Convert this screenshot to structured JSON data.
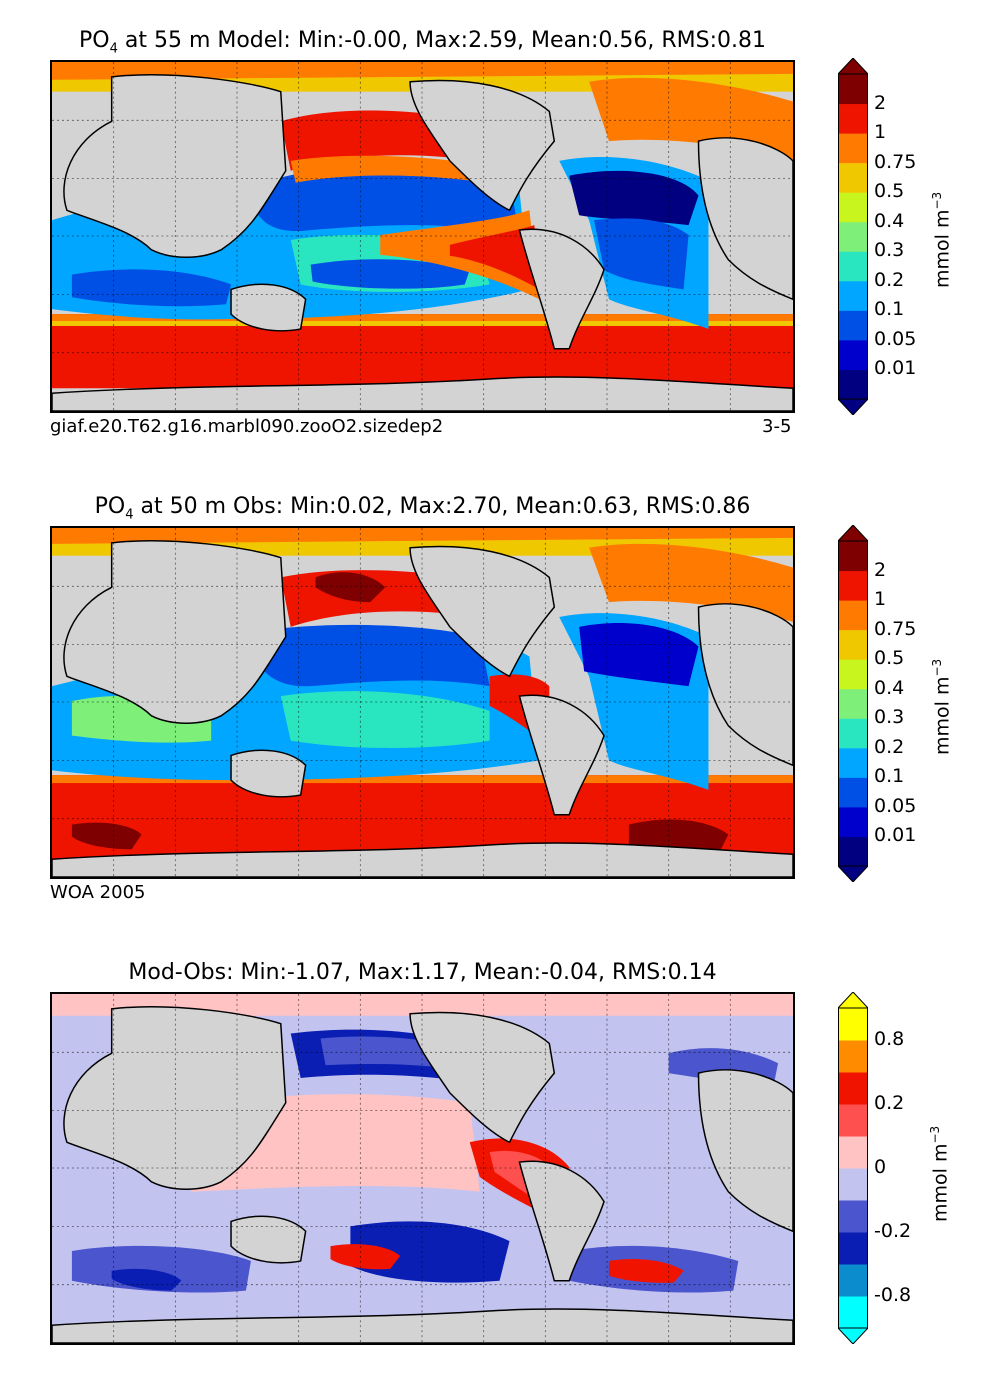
{
  "panels": [
    {
      "title_prefix": "PO",
      "title_sub": "4",
      "title_rest": " at 55 m Model: Min:-0.00, Max:2.59, Mean:0.56, RMS:0.81",
      "caption_left": "giaf.e20.T62.g16.marbl090.zooO2.sizedep2",
      "caption_right": "3-5",
      "units_base": "mmol m",
      "units_sup": "−3",
      "colorbar": {
        "ticks": [
          "2",
          "1",
          "0.75",
          "0.5",
          "0.4",
          "0.3",
          "0.2",
          "0.1",
          "0.05",
          "0.01"
        ],
        "colors": [
          "#000080",
          "#0000cd",
          "#0050e6",
          "#00a6ff",
          "#2ae6c0",
          "#7ef07a",
          "#c8f51e",
          "#f0c800",
          "#ff7a00",
          "#ef1400",
          "#7f0000"
        ]
      }
    },
    {
      "title_prefix": "PO",
      "title_sub": "4",
      "title_rest": " at 50 m Obs: Min:0.02, Max:2.70, Mean:0.63, RMS:0.86",
      "caption_left": "WOA 2005",
      "caption_right": "",
      "units_base": "mmol m",
      "units_sup": "−3",
      "colorbar": {
        "ticks": [
          "2",
          "1",
          "0.75",
          "0.5",
          "0.4",
          "0.3",
          "0.2",
          "0.1",
          "0.05",
          "0.01"
        ],
        "colors": [
          "#000080",
          "#0000cd",
          "#0050e6",
          "#00a6ff",
          "#2ae6c0",
          "#7ef07a",
          "#c8f51e",
          "#f0c800",
          "#ff7a00",
          "#ef1400",
          "#7f0000"
        ]
      }
    },
    {
      "title_prefix": "",
      "title_sub": "",
      "title_rest": "Mod-Obs: Min:-1.07, Max:1.17, Mean:-0.04, RMS:0.14",
      "caption_left": "",
      "caption_right": "",
      "units_base": "mmol m",
      "units_sup": "−3",
      "colorbar": {
        "ticks": [
          "0.8",
          "0.2",
          "0",
          "-0.2",
          "-0.8"
        ],
        "colors": [
          "#00ffff",
          "#0a8ccd",
          "#0a1eb4",
          "#4b55cd",
          "#c3c3f0",
          "#ffc3c3",
          "#ff5050",
          "#f01400",
          "#ff8c00",
          "#ffff00"
        ]
      }
    }
  ]
}
